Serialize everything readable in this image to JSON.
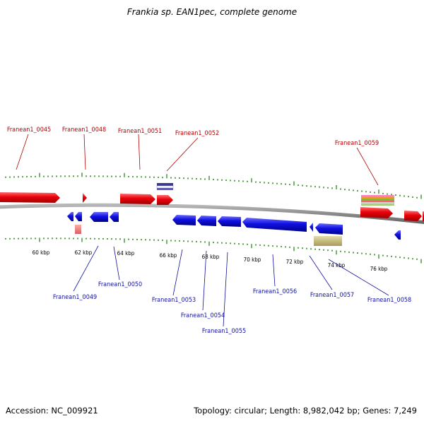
{
  "title": "Frankia sp. EAN1pec, complete genome",
  "footer": {
    "accession": "Accession: NC_009921",
    "topology": "Topology: circular; Length: 8,982,042 bp; Genes: 7,249"
  },
  "colors": {
    "forward": "#e8000b",
    "reverse": "#1010d8",
    "forward_label": "#b00000",
    "reverse_label": "#1010a0",
    "tick": "#2a8a1a",
    "backbone": "#808080"
  },
  "scale": {
    "labels": [
      "60 kbp",
      "62 kbp",
      "64 kbp",
      "66 kbp",
      "68 kbp",
      "70 kbp",
      "72 kbp",
      "74 kbp",
      "76 kbp"
    ]
  },
  "genes_forward": [
    "Franean1_0045",
    "Franean1_0048",
    "Franean1_0051",
    "Franean1_0052",
    "Franean1_0059"
  ],
  "genes_reverse": [
    "Franean1_0049",
    "Franean1_0050",
    "Franean1_0053",
    "Franean1_0054",
    "Franean1_0055",
    "Franean1_0056",
    "Franean1_0057",
    "Franean1_0058"
  ]
}
